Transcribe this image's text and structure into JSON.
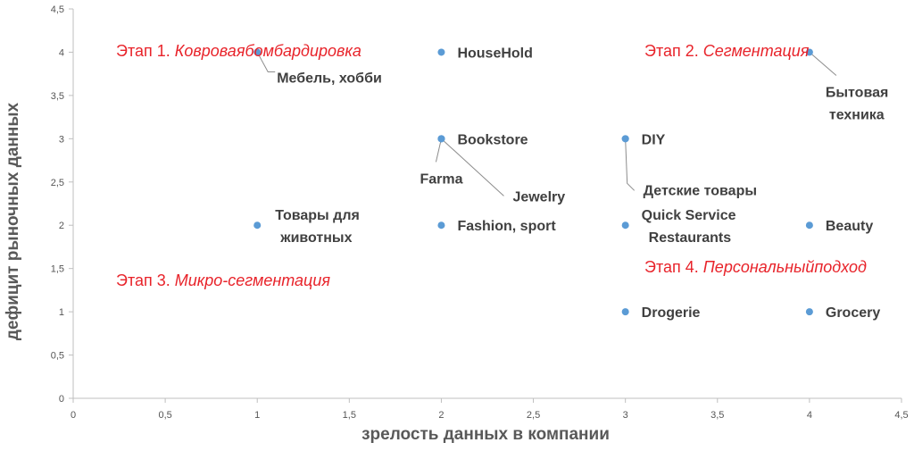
{
  "chart_data": {
    "type": "scatter",
    "title": "",
    "xlabel": "зрелость данных в компании",
    "ylabel": "дефицит рыночных данных",
    "xlim": [
      0,
      4.5
    ],
    "ylim": [
      0,
      4.5
    ],
    "grid": false,
    "legend": "none",
    "x_ticks": [
      "0",
      "0,5",
      "1",
      "1,5",
      "2",
      "2,5",
      "3",
      "3,5",
      "4",
      "4,5"
    ],
    "y_ticks": [
      "0",
      "0,5",
      "1",
      "1,5",
      "2",
      "2,5",
      "3",
      "3,5",
      "4",
      "4,5"
    ],
    "point_color": "#5b9bd5",
    "points": [
      {
        "x": 1,
        "y": 4,
        "label": [
          "Мебель, хобби"
        ]
      },
      {
        "x": 2,
        "y": 4,
        "label": [
          "HouseHold"
        ]
      },
      {
        "x": 4,
        "y": 4,
        "label": [
          "Бытовая",
          "техника"
        ]
      },
      {
        "x": 2,
        "y": 3,
        "label": [
          "Bookstore"
        ]
      },
      {
        "x": 2,
        "y": 3,
        "label": [
          "Farma"
        ]
      },
      {
        "x": 2,
        "y": 3,
        "label": [
          "Jewelry"
        ]
      },
      {
        "x": 3,
        "y": 3,
        "label": [
          "DIY"
        ]
      },
      {
        "x": 3,
        "y": 3,
        "label": [
          "Детские товары"
        ]
      },
      {
        "x": 1,
        "y": 2,
        "label": [
          "Товары для",
          "животных"
        ]
      },
      {
        "x": 2,
        "y": 2,
        "label": [
          "Fashion, sport"
        ]
      },
      {
        "x": 3,
        "y": 2,
        "label": [
          "Quick Service",
          "Restaurants"
        ]
      },
      {
        "x": 4,
        "y": 2,
        "label": [
          "Beauty"
        ]
      },
      {
        "x": 3,
        "y": 1,
        "label": [
          "Drogerie"
        ]
      },
      {
        "x": 4,
        "y": 1,
        "label": [
          "Grocery"
        ]
      }
    ],
    "annotations": [
      {
        "lines": [
          {
            "plain": "Этап 1. ",
            "italic": "Ковровая"
          },
          {
            "plain": "",
            "italic": "бомбардировка"
          }
        ]
      },
      {
        "lines": [
          {
            "plain": "Этап 2. ",
            "italic": "Сегментация"
          }
        ]
      },
      {
        "lines": [
          {
            "plain": "Этап 3. ",
            "italic": "Микро-"
          },
          {
            "plain": "",
            "italic": "сегментация"
          }
        ]
      },
      {
        "lines": [
          {
            "plain": "Этап 4. ",
            "italic": "Персональный"
          },
          {
            "plain": "",
            "italic": "подход"
          }
        ]
      }
    ],
    "colors": {
      "axis": "#bfbfbf",
      "stage": "#e8232a",
      "label": "#404040",
      "leader": "#8c8c8c"
    }
  }
}
